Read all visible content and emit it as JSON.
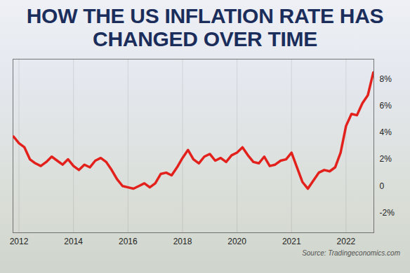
{
  "chart_data": {
    "type": "line",
    "title": "HOW THE US INFLATION RATE HAS CHANGED OVER TIME",
    "source": "Source: Tradingeconomics.com",
    "categories": [
      null,
      "2012",
      null,
      null,
      null,
      null,
      null,
      null,
      null,
      null,
      null,
      "2014",
      null,
      null,
      null,
      null,
      null,
      null,
      null,
      null,
      null,
      "2016",
      null,
      null,
      null,
      null,
      null,
      null,
      null,
      null,
      null,
      "2018",
      null,
      null,
      null,
      null,
      null,
      null,
      null,
      null,
      null,
      "2020",
      null,
      null,
      null,
      null,
      null,
      null,
      null,
      null,
      null,
      "2021",
      null,
      null,
      null,
      null,
      null,
      null,
      null,
      null,
      null,
      "2022",
      null,
      null,
      null,
      null,
      null
    ],
    "values": [
      3.7,
      3.2,
      2.9,
      2.0,
      1.7,
      1.5,
      1.8,
      2.2,
      1.9,
      1.6,
      2.0,
      1.5,
      1.2,
      1.6,
      1.4,
      1.9,
      2.1,
      1.8,
      1.2,
      0.5,
      0.0,
      -0.1,
      -0.2,
      0.0,
      0.2,
      -0.1,
      0.2,
      0.9,
      1.0,
      0.8,
      1.4,
      2.1,
      2.7,
      2.0,
      1.7,
      2.2,
      2.4,
      1.9,
      2.1,
      1.8,
      2.3,
      2.5,
      2.9,
      2.3,
      1.8,
      1.7,
      2.2,
      1.5,
      1.6,
      1.9,
      2.0,
      2.5,
      1.4,
      0.3,
      -0.2,
      0.4,
      1.0,
      1.2,
      1.1,
      1.4,
      2.5,
      4.5,
      5.4,
      5.3,
      6.2,
      6.8,
      8.5
    ],
    "color": "#e3211c",
    "ylim": [
      -3.5,
      9.5
    ],
    "yticks": [
      {
        "value": -2,
        "label": "-2%"
      },
      0,
      {
        "value": 2,
        "label": "2%"
      },
      {
        "value": 4,
        "label": "4%"
      },
      {
        "value": 6,
        "label": "6%"
      },
      {
        "value": 8,
        "label": "8%"
      }
    ],
    "grid": true
  }
}
